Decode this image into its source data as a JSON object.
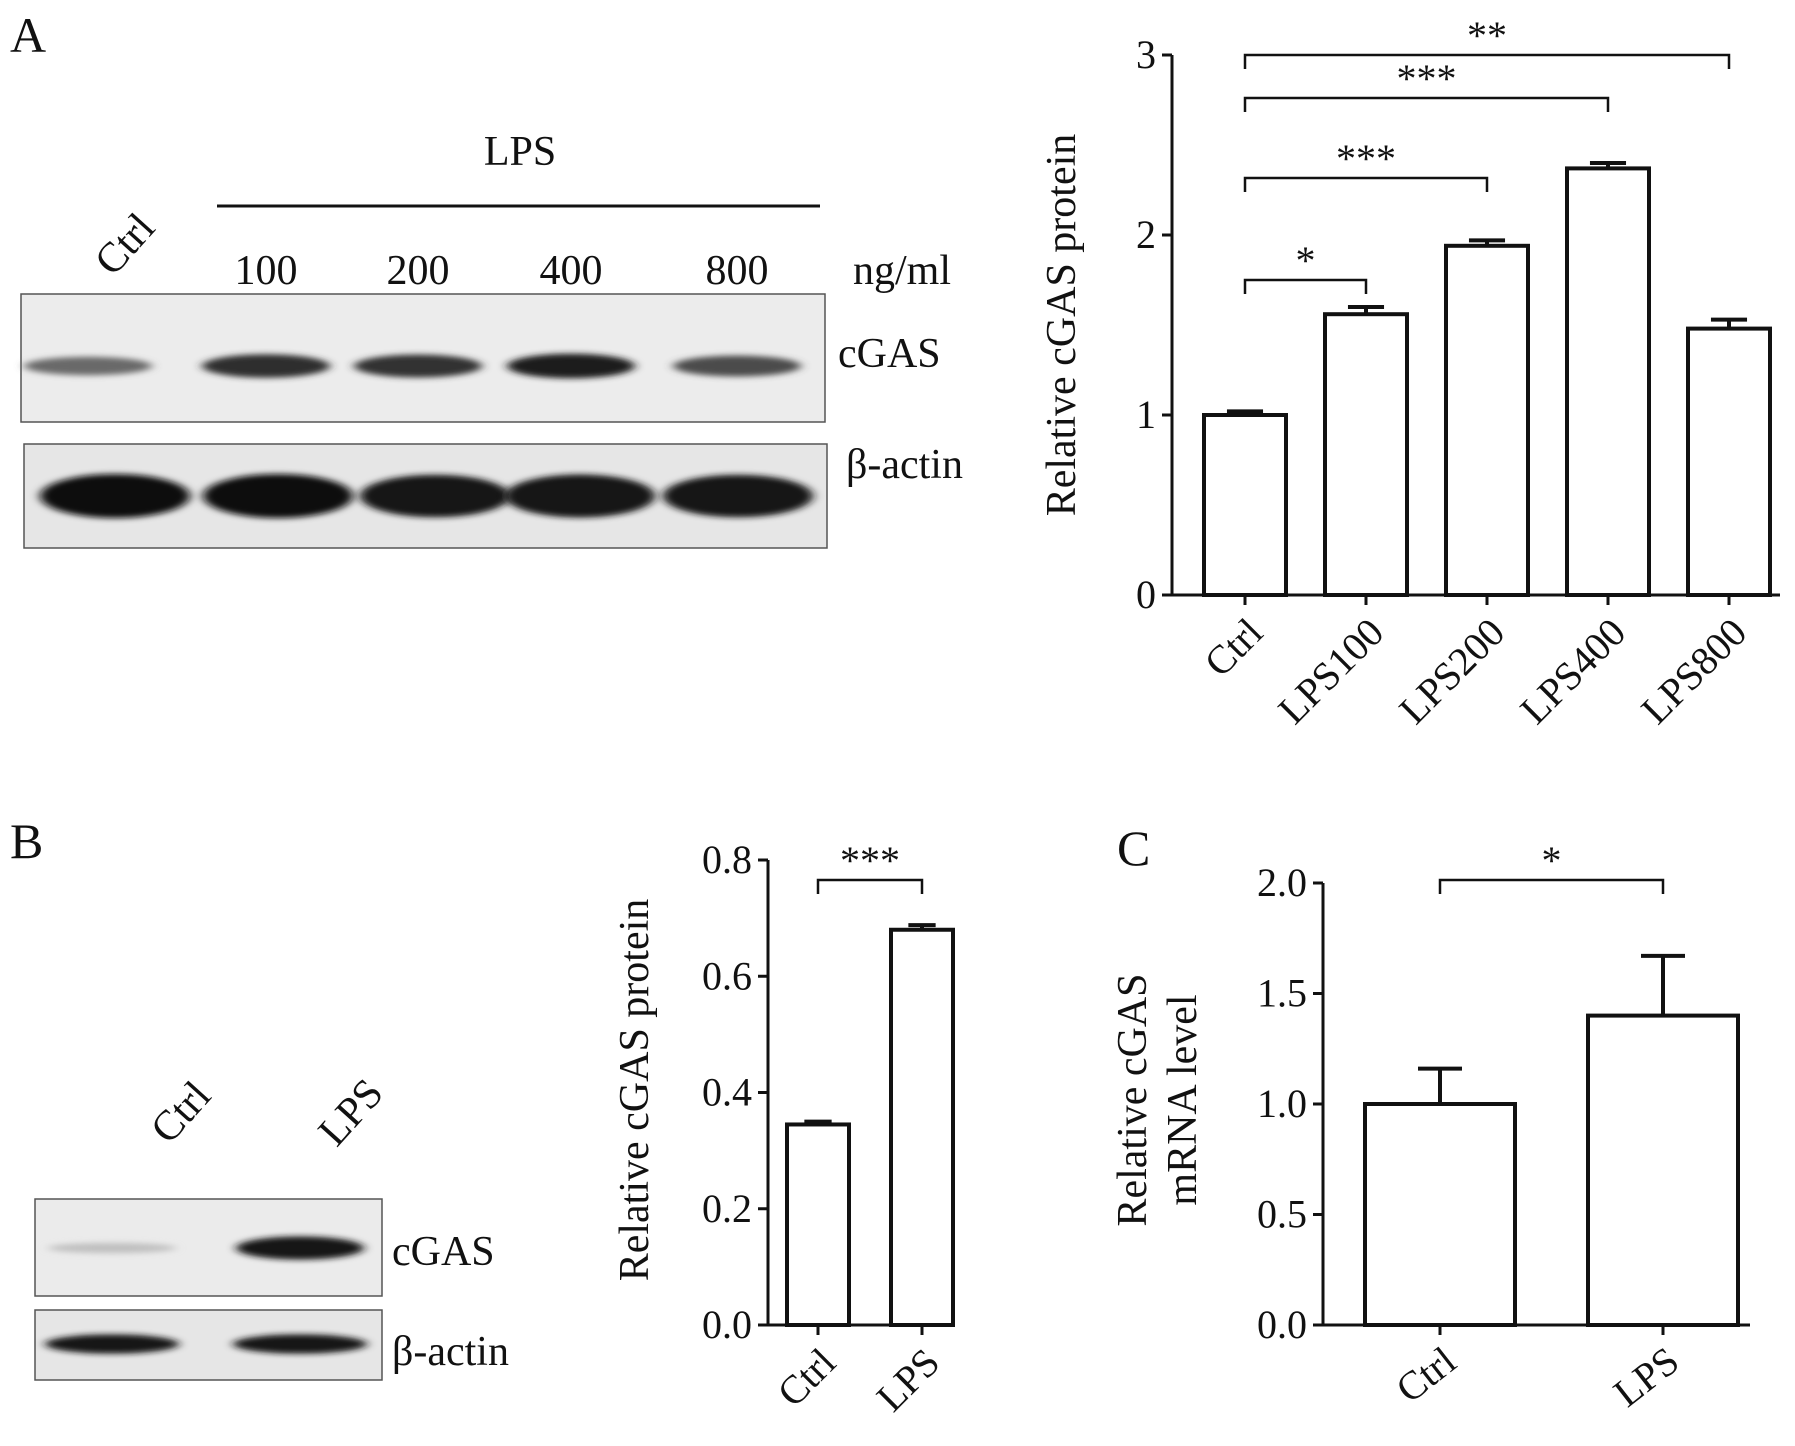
{
  "panels": {
    "A": {
      "letter": "A",
      "blot": {
        "treatment_label": "LPS",
        "lane_labels": [
          "Ctrl",
          "100",
          "200",
          "400",
          "800"
        ],
        "unit": "ng/ml",
        "rows": [
          {
            "label": "cGAS",
            "band_intensity": [
              0.55,
              0.85,
              0.82,
              0.92,
              0.7
            ]
          },
          {
            "label": "β-actin",
            "band_intensity": [
              1,
              1,
              0.95,
              0.97,
              0.95
            ]
          }
        ]
      }
    },
    "B": {
      "letter": "B",
      "blot": {
        "lane_labels": [
          "Ctrl",
          "LPS"
        ],
        "rows": [
          {
            "label": "cGAS",
            "band_intensity": [
              0.12,
              0.95
            ]
          },
          {
            "label": "β-actin",
            "band_intensity": [
              0.95,
              0.95
            ]
          }
        ]
      }
    },
    "C": {
      "letter": "C"
    }
  },
  "chart_data": [
    {
      "panel": "A",
      "type": "bar",
      "categories": [
        "Ctrl",
        "LPS100",
        "LPS200",
        "LPS400",
        "LPS800"
      ],
      "values": [
        1.0,
        1.56,
        1.94,
        2.37,
        1.48
      ],
      "errors": [
        0.02,
        0.04,
        0.03,
        0.03,
        0.05
      ],
      "ylabel": "Relative cGAS protein",
      "ylim": [
        0,
        3
      ],
      "yticks": [
        "0",
        "1",
        "2",
        "3"
      ],
      "significance": [
        {
          "from": "Ctrl",
          "to": "LPS100",
          "label": "*"
        },
        {
          "from": "Ctrl",
          "to": "LPS200",
          "label": "***"
        },
        {
          "from": "Ctrl",
          "to": "LPS400",
          "label": "***"
        },
        {
          "from": "Ctrl",
          "to": "LPS800",
          "label": "**"
        }
      ]
    },
    {
      "panel": "B",
      "type": "bar",
      "categories": [
        "Ctrl",
        "LPS"
      ],
      "values": [
        0.345,
        0.68
      ],
      "errors": [
        0.005,
        0.008
      ],
      "ylabel": "Relative cGAS protein",
      "ylim": [
        0,
        0.8
      ],
      "yticks": [
        "0.0",
        "0.2",
        "0.4",
        "0.6",
        "0.8"
      ],
      "significance": [
        {
          "from": "Ctrl",
          "to": "LPS",
          "label": "***"
        }
      ]
    },
    {
      "panel": "C",
      "type": "bar",
      "categories": [
        "Ctrl",
        "LPS"
      ],
      "values": [
        1.0,
        1.4
      ],
      "errors": [
        0.16,
        0.27
      ],
      "ylabel": [
        "Relative cGAS",
        "mRNA level"
      ],
      "ylim": [
        0,
        2
      ],
      "yticks": [
        "0.0",
        "0.5",
        "1.0",
        "1.5",
        "2.0"
      ],
      "significance": [
        {
          "from": "Ctrl",
          "to": "LPS",
          "label": "*"
        }
      ]
    }
  ]
}
